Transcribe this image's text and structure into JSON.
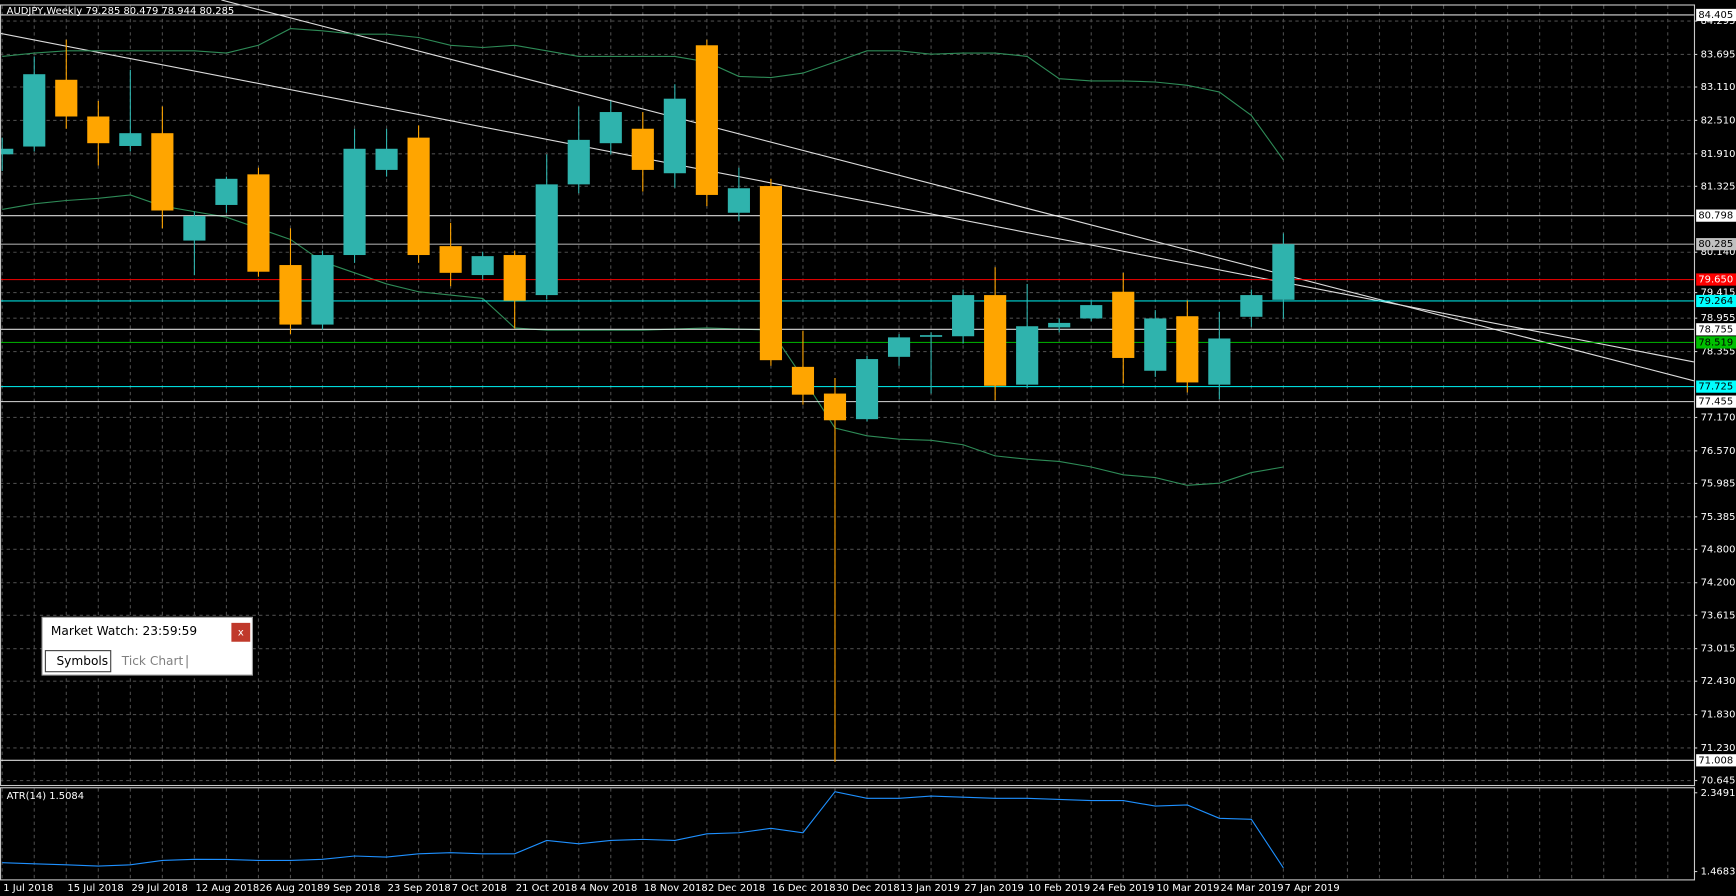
{
  "chart_data": [
    {
      "type": "candlestick",
      "title": "AUDJPY,Weekly  79.285 80.479 78.944 80.285",
      "categories": [
        "1 Jul 2018",
        null,
        "15 Jul 2018",
        null,
        "29 Jul 2018",
        null,
        "12 Aug 2018",
        null,
        "26 Aug 2018",
        null,
        "9 Sep 2018",
        null,
        "23 Sep 2018",
        null,
        "7 Oct 2018",
        null,
        "21 Oct 2018",
        null,
        "4 Nov 2018",
        null,
        "18 Nov 2018",
        null,
        "2 Dec 2018",
        null,
        "16 Dec 2018",
        null,
        "30 Dec 2018",
        null,
        "13 Jan 2019",
        null,
        "27 Jan 2019",
        null,
        "10 Feb 2019",
        null,
        "24 Feb 2019",
        null,
        "10 Mar 2019",
        null,
        "24 Mar 2019",
        null,
        "7 Apr 2019"
      ],
      "open": [
        81.9,
        82.04,
        83.24,
        82.58,
        82.05,
        82.28,
        80.35,
        80.99,
        81.54,
        79.91,
        78.84,
        80.09,
        81.62,
        82.2,
        80.25,
        79.73,
        80.09,
        79.37,
        81.36,
        82.1,
        82.36,
        81.56,
        83.86,
        80.85,
        81.33,
        78.08,
        77.6,
        77.14,
        78.26,
        78.62,
        78.63,
        79.37,
        77.76,
        78.79,
        78.95,
        79.43,
        78.01,
        78.99,
        77.76,
        78.98,
        79.285
      ],
      "high": [
        82.2,
        83.66,
        83.96,
        82.86,
        83.42,
        82.76,
        80.87,
        81.5,
        81.66,
        80.57,
        80.17,
        82.36,
        82.36,
        82.42,
        80.67,
        80.15,
        80.17,
        81.9,
        82.76,
        82.86,
        82.66,
        83.16,
        83.96,
        81.66,
        81.46,
        78.73,
        77.88,
        78.28,
        78.67,
        78.7,
        79.47,
        79.87,
        79.57,
        78.95,
        79.25,
        79.77,
        79.1,
        79.27,
        79.07,
        79.47,
        80.479
      ],
      "low": [
        81.6,
        81.95,
        82.36,
        81.7,
        81.95,
        80.57,
        79.73,
        80.85,
        79.7,
        78.67,
        78.75,
        79.95,
        81.5,
        79.95,
        79.53,
        79.65,
        78.77,
        79.3,
        81.2,
        81.9,
        81.23,
        81.3,
        80.97,
        80.7,
        78.1,
        77.4,
        70.98,
        77.1,
        78.1,
        77.6,
        78.5,
        77.48,
        77.7,
        78.7,
        78.9,
        77.78,
        77.9,
        77.62,
        77.5,
        78.8,
        78.944
      ],
      "close": [
        82.0,
        83.34,
        82.58,
        82.1,
        82.28,
        80.89,
        80.79,
        81.46,
        79.79,
        78.84,
        80.09,
        82.0,
        82.0,
        80.09,
        79.77,
        80.07,
        79.27,
        81.36,
        82.16,
        82.66,
        81.62,
        82.9,
        81.17,
        81.29,
        78.2,
        77.58,
        77.12,
        78.22,
        78.61,
        78.65,
        79.37,
        77.74,
        78.81,
        78.87,
        79.19,
        78.24,
        78.95,
        77.8,
        78.59,
        79.37,
        80.285
      ],
      "up_color": "#2fb3ad",
      "down_color": "#ffa500",
      "series": [
        {
          "color": "#2e8b57",
          "values": [
            83.66,
            83.72,
            83.76,
            83.76,
            83.76,
            83.76,
            83.76,
            83.72,
            83.86,
            84.16,
            84.12,
            84.06,
            84.06,
            84.0,
            83.86,
            83.82,
            83.86,
            83.76,
            83.66,
            83.66,
            83.66,
            83.66,
            83.56,
            83.3,
            83.28,
            83.36,
            83.56,
            83.76,
            83.76,
            83.7,
            83.72,
            83.72,
            83.66,
            83.26,
            83.22,
            83.22,
            83.2,
            83.14,
            83.02,
            82.6,
            81.8
          ]
        },
        {
          "color": "#2e8b57",
          "values": [
            80.91,
            81.01,
            81.07,
            81.11,
            81.17,
            80.97,
            80.87,
            80.77,
            80.57,
            80.37,
            79.97,
            79.77,
            79.57,
            79.43,
            79.37,
            79.31,
            78.78,
            78.74,
            78.74,
            78.74,
            78.74,
            78.76,
            78.78,
            78.76,
            78.74,
            77.88,
            76.98,
            76.84,
            76.78,
            76.76,
            76.68,
            76.48,
            76.42,
            76.38,
            76.28,
            76.14,
            76.09,
            75.95,
            75.99,
            76.18,
            76.28
          ]
        }
      ],
      "ylim": [
        70.565,
        84.574
      ],
      "yticks": [
        84.295,
        83.695,
        {
          "value": 83.11,
          "label": "83.110"
        },
        {
          "value": 82.51,
          "label": "82.510"
        },
        {
          "value": 81.91,
          "label": "81.910"
        },
        81.325,
        {
          "value": 80.14,
          "label": "80.140"
        },
        79.415,
        78.955,
        78.355,
        {
          "value": 77.17,
          "label": "77.170"
        },
        {
          "value": 76.57,
          "label": "76.570"
        },
        75.985,
        75.385,
        {
          "value": 74.8,
          "label": "74.800"
        },
        {
          "value": 74.2,
          "label": "74.200"
        },
        73.615,
        73.015,
        {
          "value": 72.43,
          "label": "72.430"
        },
        {
          "value": 71.83,
          "label": "71.830"
        },
        {
          "value": 71.23,
          "label": "71.230"
        },
        70.645
      ],
      "levels": [
        {
          "value": 84.405,
          "label": "84.405",
          "color": "#ffffff"
        },
        {
          "value": 80.798,
          "label": "80.798",
          "color": "#ffffff"
        },
        {
          "value": 80.285,
          "label": "80.285",
          "color": "#c0c0c0"
        },
        {
          "value": 79.65,
          "label": "79.650",
          "color": "#ff0000"
        },
        {
          "value": 79.264,
          "label": "79.264",
          "color": "#00ffff"
        },
        {
          "value": 78.755,
          "label": "78.755",
          "color": "#ffffff"
        },
        {
          "value": 78.519,
          "label": "78.519",
          "color": "#00c000"
        },
        {
          "value": 77.725,
          "label": "77.725",
          "color": "#00ffff"
        },
        {
          "value": 77.455,
          "label": "77.455",
          "color": "#ffffff"
        },
        {
          "value": 71.008,
          "label": "71.008",
          "color": "#ffffff"
        }
      ],
      "grid": true
    },
    {
      "type": "line",
      "title": "ATR(14) 1.5084",
      "color": "#1e90ff",
      "values": [
        1.567,
        1.555,
        1.543,
        1.53,
        1.543,
        1.592,
        1.605,
        1.604,
        1.592,
        1.592,
        1.605,
        1.642,
        1.63,
        1.667,
        1.679,
        1.667,
        1.667,
        1.816,
        1.778,
        1.816,
        1.828,
        1.816,
        1.89,
        1.902,
        1.952,
        1.902,
        2.361,
        2.287,
        2.287,
        2.312,
        2.3,
        2.287,
        2.287,
        2.275,
        2.262,
        2.262,
        2.2,
        2.213,
        2.064,
        2.052,
        1.5084
      ],
      "ylim": [
        1.381,
        2.399
      ],
      "yticks": [
        2.3491,
        1.4683
      ]
    }
  ],
  "market_watch": {
    "title": "Market Watch: 23:59:59",
    "close": "x",
    "tabs": [
      "Symbols",
      "Tick Chart"
    ]
  }
}
